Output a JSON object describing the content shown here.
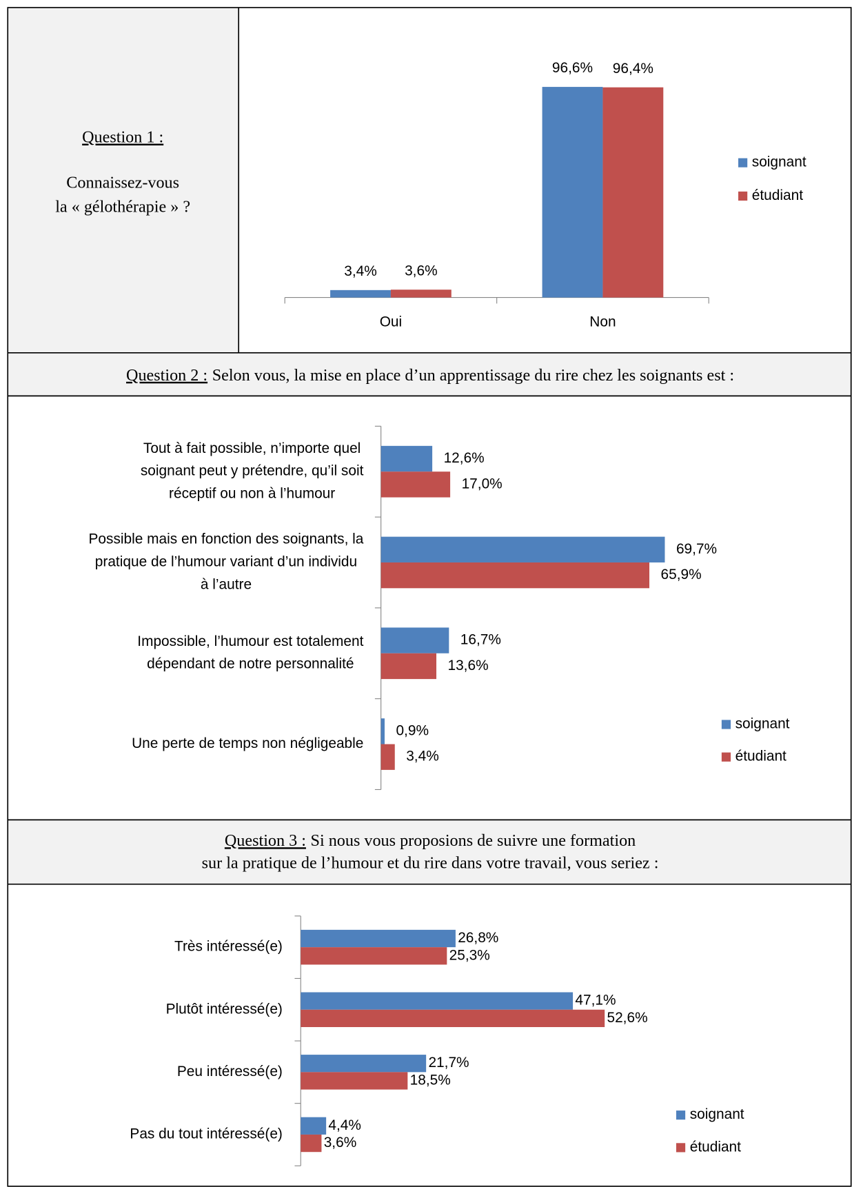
{
  "questions": [
    {
      "label": "Question 1 :",
      "lines": [
        "Connaissez-vous",
        "la « gélothérapie » ?"
      ]
    },
    {
      "label": "Question 2 :",
      "lines": [
        "Selon vous, la mise en place d’un apprentissage du rire chez les soignants est :"
      ]
    },
    {
      "label": "Question 3 :",
      "lines": [
        "Si nous vous proposions de suivre une formation",
        "sur la pratique de l’humour et du rire dans votre travail, vous seriez :"
      ]
    }
  ],
  "chart_data": [
    {
      "type": "bar",
      "orientation": "vertical",
      "categories": [
        "Oui",
        "Non"
      ],
      "ylim": [
        0,
        100
      ],
      "series": [
        {
          "name": "soignant",
          "color": "#4f81bd",
          "values": [
            3.4,
            96.6
          ],
          "value_labels": [
            "3,4%",
            "96,6%"
          ]
        },
        {
          "name": "étudiant",
          "color": "#c0504d",
          "values": [
            3.6,
            96.4
          ],
          "value_labels": [
            "3,6%",
            "96,4%"
          ]
        }
      ]
    },
    {
      "type": "bar",
      "orientation": "horizontal",
      "xlim": [
        0,
        100
      ],
      "categories": [
        [
          "Tout à fait possible, n’importe quel",
          "soignant peut y prétendre, qu’il soit",
          "réceptif ou non à l’humour"
        ],
        [
          "Possible mais en fonction des soignants, la",
          "pratique de l’humour variant d’un individu",
          "à l’autre"
        ],
        [
          "Impossible, l’humour est totalement",
          "dépendant de notre personnalité"
        ],
        [
          "Une perte de temps non négligeable"
        ]
      ],
      "series": [
        {
          "name": "soignant",
          "color": "#4f81bd",
          "values": [
            12.6,
            69.7,
            16.7,
            0.9
          ],
          "value_labels": [
            "12,6%",
            "69,7%",
            "16,7%",
            "0,9%"
          ]
        },
        {
          "name": "étudiant",
          "color": "#c0504d",
          "values": [
            17.0,
            65.9,
            13.6,
            3.4
          ],
          "value_labels": [
            "17,0%",
            "65,9%",
            "13,6%",
            "3,4%"
          ]
        }
      ]
    },
    {
      "type": "bar",
      "orientation": "horizontal",
      "xlim": [
        0,
        60
      ],
      "categories": [
        [
          "Très intéressé(e)"
        ],
        [
          "Plutôt intéressé(e)"
        ],
        [
          "Peu intéressé(e)"
        ],
        [
          "Pas du tout intéressé(e)"
        ]
      ],
      "series": [
        {
          "name": "soignant",
          "color": "#4f81bd",
          "values": [
            26.8,
            47.1,
            21.7,
            4.4
          ],
          "value_labels": [
            "26,8%",
            "47,1%",
            "21,7%",
            "4,4%"
          ]
        },
        {
          "name": "étudiant",
          "color": "#c0504d",
          "values": [
            25.3,
            52.6,
            18.5,
            3.6
          ],
          "value_labels": [
            "25,3%",
            "52,6%",
            "18,5%",
            "3,6%"
          ]
        }
      ]
    }
  ]
}
